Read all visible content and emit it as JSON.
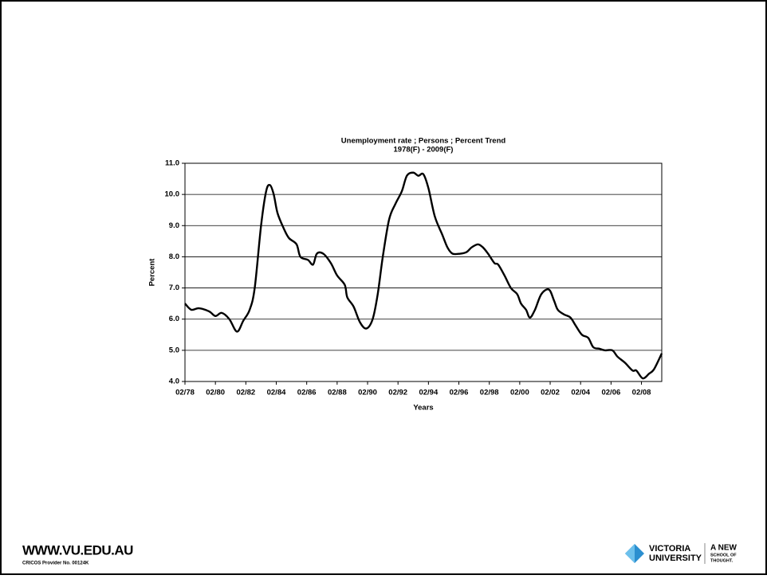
{
  "chart_data": {
    "type": "line",
    "title": "Unemployment rate ;  Persons ; Percent Trend",
    "subtitle": "1978(F) - 2009(F)",
    "x_label": "Years",
    "y_label": "Percent",
    "x": [
      "1978-02",
      "1978-07",
      "1979-01",
      "1979-09",
      "1980-02",
      "1980-07",
      "1981-01",
      "1981-07",
      "1981-12",
      "1982-05",
      "1982-09",
      "1983-02",
      "1983-06",
      "1983-09",
      "1983-12",
      "1984-03",
      "1984-08",
      "1984-12",
      "1985-06",
      "1985-09",
      "1986-03",
      "1986-07",
      "1986-10",
      "1987-03",
      "1987-09",
      "1988-02",
      "1988-08",
      "1988-10",
      "1989-03",
      "1989-08",
      "1990-01",
      "1990-06",
      "1990-10",
      "1991-02",
      "1991-07",
      "1991-12",
      "1992-05",
      "1992-09",
      "1993-02",
      "1993-06",
      "1993-10",
      "1994-02",
      "1994-07",
      "1995-01",
      "1995-05",
      "1995-09",
      "1996-03",
      "1996-08",
      "1996-12",
      "1997-05",
      "1997-09",
      "1998-01",
      "1998-06",
      "1998-09",
      "1999-02",
      "1999-07",
      "1999-12",
      "2000-03",
      "2000-07",
      "2000-10",
      "2001-02",
      "2001-07",
      "2002-01",
      "2002-05",
      "2002-08",
      "2003-01",
      "2003-06",
      "2003-10",
      "2004-03",
      "2004-08",
      "2004-12",
      "2005-05",
      "2005-09",
      "2006-03",
      "2006-07",
      "2007-01",
      "2007-07",
      "2007-10",
      "2008-03",
      "2008-08",
      "2008-12",
      "2009-06"
    ],
    "series": [
      {
        "name": "Unemployment rate",
        "color": "#000000",
        "values": [
          6.5,
          6.3,
          6.35,
          6.25,
          6.1,
          6.2,
          6.0,
          5.6,
          5.95,
          6.3,
          7.0,
          9.0,
          10.1,
          10.3,
          10.0,
          9.4,
          8.9,
          8.6,
          8.4,
          8.0,
          7.9,
          7.75,
          8.1,
          8.1,
          7.8,
          7.4,
          7.1,
          6.7,
          6.4,
          5.9,
          5.7,
          6.0,
          6.8,
          8.0,
          9.2,
          9.7,
          10.1,
          10.6,
          10.7,
          10.6,
          10.65,
          10.2,
          9.3,
          8.7,
          8.3,
          8.1,
          8.1,
          8.15,
          8.3,
          8.4,
          8.3,
          8.1,
          7.8,
          7.75,
          7.4,
          7.0,
          6.8,
          6.5,
          6.3,
          6.05,
          6.3,
          6.8,
          6.95,
          6.6,
          6.3,
          6.15,
          6.05,
          5.8,
          5.5,
          5.4,
          5.1,
          5.05,
          5.0,
          5.0,
          4.8,
          4.6,
          4.35,
          4.35,
          4.1,
          4.25,
          4.4,
          4.9
        ]
      }
    ],
    "xlim": [
      "1978-02",
      "2009-06"
    ],
    "xticks": [
      {
        "value": "1978-02",
        "label": "02/78"
      },
      {
        "value": "1980-02",
        "label": "02/80"
      },
      {
        "value": "1982-02",
        "label": "02/82"
      },
      {
        "value": "1984-02",
        "label": "02/84"
      },
      {
        "value": "1986-02",
        "label": "02/86"
      },
      {
        "value": "1988-02",
        "label": "02/88"
      },
      {
        "value": "1990-02",
        "label": "02/90"
      },
      {
        "value": "1992-02",
        "label": "02/92"
      },
      {
        "value": "1994-02",
        "label": "02/94"
      },
      {
        "value": "1996-02",
        "label": "02/96"
      },
      {
        "value": "1998-02",
        "label": "02/98"
      },
      {
        "value": "2000-02",
        "label": "02/00"
      },
      {
        "value": "2002-02",
        "label": "02/02"
      },
      {
        "value": "2004-02",
        "label": "02/04"
      },
      {
        "value": "2006-02",
        "label": "02/06"
      },
      {
        "value": "2008-02",
        "label": "02/08"
      }
    ],
    "ylim": [
      4,
      11
    ],
    "yticks": [
      {
        "value": 4,
        "label": "4.0"
      },
      {
        "value": 5,
        "label": "5.0"
      },
      {
        "value": 6,
        "label": "6.0"
      },
      {
        "value": 7,
        "label": "7.0"
      },
      {
        "value": 8,
        "label": "8.0"
      },
      {
        "value": 9,
        "label": "9.0"
      },
      {
        "value": 10,
        "label": "10.0"
      },
      {
        "value": 11,
        "label": "11.0"
      }
    ],
    "grid": true
  },
  "footer": {
    "website": "WWW.VU.EDU.AU",
    "cricos": "CRICOS Provider No. 00124K",
    "university_line1": "VICTORIA",
    "university_line2": "UNIVERSITY",
    "slogan_line1": "A NEW",
    "slogan_line2": "SCHOOL OF",
    "slogan_line3": "THOUGHT."
  }
}
